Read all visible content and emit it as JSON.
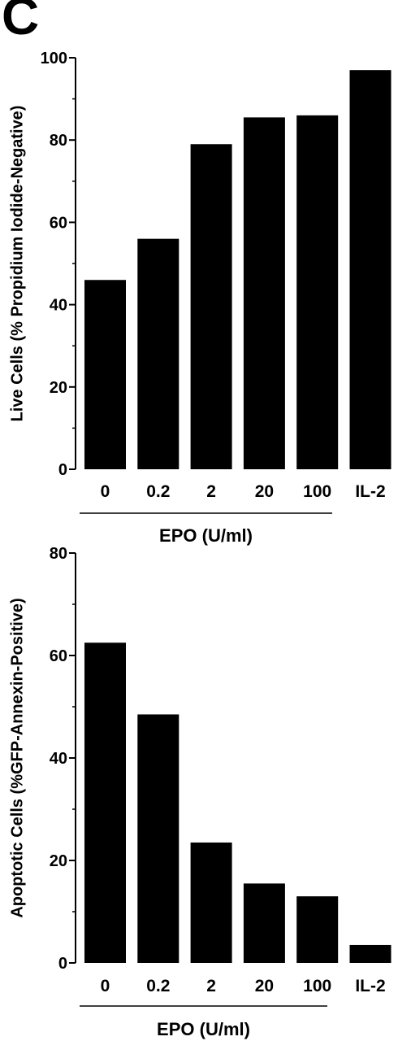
{
  "panel_label": "C",
  "chart_data": [
    {
      "type": "bar",
      "title": "",
      "xlabel": "EPO (U/ml)",
      "ylabel": "Live Cells (% Propidium Iodide-Negative)",
      "categories": [
        "0",
        "0.2",
        "2",
        "20",
        "100",
        "IL-2"
      ],
      "values": [
        46,
        56,
        79,
        85.5,
        86,
        97
      ],
      "ylim": [
        0,
        100
      ],
      "yticks": [
        0,
        20,
        40,
        60,
        80,
        100
      ],
      "grid": false,
      "bar_color": "#000000",
      "group_underline_categories": [
        "0",
        "0.2",
        "2",
        "20",
        "100"
      ]
    },
    {
      "type": "bar",
      "title": "",
      "xlabel": "EPO (U/ml)",
      "ylabel": "Apoptotic Cells (%GFP-Annexin-Positive)",
      "categories": [
        "0",
        "0.2",
        "2",
        "20",
        "100",
        "IL-2"
      ],
      "values": [
        62.5,
        48.5,
        23.5,
        15.5,
        13,
        3.5
      ],
      "ylim": [
        0,
        80
      ],
      "yticks": [
        0,
        20,
        40,
        60,
        80
      ],
      "grid": false,
      "bar_color": "#000000",
      "group_underline_categories": [
        "0",
        "0.2",
        "2",
        "20",
        "100"
      ]
    }
  ]
}
